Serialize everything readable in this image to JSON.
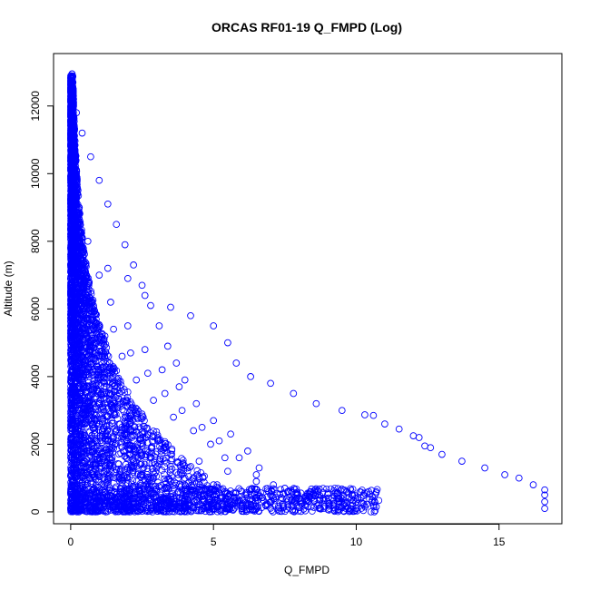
{
  "chart_data": {
    "type": "scatter",
    "title": "ORCAS RF01-19 Q_FMPD (Log)",
    "xlabel": "Q_FMPD",
    "ylabel": "Altitude (m)",
    "xlim": [
      -0.6,
      17.2
    ],
    "ylim": [
      -350,
      13550
    ],
    "x_ticks": [
      0,
      5,
      10,
      15
    ],
    "y_ticks": [
      0,
      2000,
      4000,
      6000,
      8000,
      10000,
      12000
    ],
    "marker": "open-circle",
    "color": "#0000ff",
    "grid": false,
    "legend": "none",
    "series": [
      {
        "points": [
          [
            0.05,
            12950
          ],
          [
            0.05,
            12800
          ],
          [
            0.05,
            12600
          ],
          [
            0.05,
            12400
          ],
          [
            0.1,
            12200
          ],
          [
            0.2,
            11800
          ],
          [
            0.4,
            11200
          ],
          [
            0.7,
            10500
          ],
          [
            1.0,
            9800
          ],
          [
            1.3,
            9100
          ],
          [
            1.6,
            8500
          ],
          [
            1.9,
            7900
          ],
          [
            2.2,
            7300
          ],
          [
            2.5,
            6700
          ],
          [
            2.8,
            6100
          ],
          [
            3.1,
            5500
          ],
          [
            3.4,
            4900
          ],
          [
            3.7,
            4400
          ],
          [
            4.0,
            3900
          ],
          [
            0.1,
            11000
          ],
          [
            0.3,
            9000
          ],
          [
            0.6,
            8000
          ],
          [
            1.0,
            7000
          ],
          [
            1.4,
            6200
          ],
          [
            2.0,
            5500
          ],
          [
            2.6,
            4800
          ],
          [
            3.2,
            4200
          ],
          [
            3.8,
            3700
          ],
          [
            4.4,
            3200
          ],
          [
            5.0,
            2700
          ],
          [
            5.6,
            2300
          ],
          [
            6.2,
            1800
          ],
          [
            6.6,
            1300
          ],
          [
            1.3,
            7200
          ],
          [
            2.0,
            6900
          ],
          [
            2.6,
            6400
          ],
          [
            3.5,
            6050
          ],
          [
            4.2,
            5800
          ],
          [
            5.0,
            5500
          ],
          [
            5.5,
            5000
          ],
          [
            5.8,
            4400
          ],
          [
            6.3,
            4000
          ],
          [
            7.0,
            3800
          ],
          [
            7.8,
            3500
          ],
          [
            8.6,
            3200
          ],
          [
            9.5,
            3000
          ],
          [
            10.3,
            2870
          ],
          [
            10.6,
            2850
          ],
          [
            11.0,
            2600
          ],
          [
            11.5,
            2450
          ],
          [
            12.0,
            2250
          ],
          [
            12.2,
            2200
          ],
          [
            12.4,
            1950
          ],
          [
            12.6,
            1900
          ],
          [
            13.0,
            1700
          ],
          [
            13.7,
            1500
          ],
          [
            14.5,
            1300
          ],
          [
            15.2,
            1100
          ],
          [
            15.7,
            1000
          ],
          [
            16.2,
            800
          ],
          [
            16.6,
            650
          ],
          [
            16.6,
            500
          ],
          [
            16.6,
            300
          ],
          [
            16.6,
            100
          ],
          [
            0.3,
            3500
          ],
          [
            0.6,
            3000
          ],
          [
            1.0,
            2600
          ],
          [
            1.5,
            2200
          ],
          [
            2.2,
            1700
          ],
          [
            3.0,
            1300
          ],
          [
            4.0,
            1000
          ],
          [
            5.0,
            800
          ],
          [
            6.0,
            600
          ],
          [
            7.0,
            500
          ],
          [
            8.0,
            400
          ],
          [
            9.0,
            300
          ],
          [
            10.0,
            200
          ],
          [
            10.7,
            150
          ],
          [
            0.9,
            1400
          ],
          [
            0.6,
            1100
          ],
          [
            0.5,
            800
          ],
          [
            0.9,
            600
          ],
          [
            1.4,
            450
          ],
          [
            2.2,
            300
          ],
          [
            3.0,
            150
          ],
          [
            4.0,
            100
          ],
          [
            5.0,
            80
          ],
          [
            6.0,
            90
          ],
          [
            7.0,
            110
          ],
          [
            8.0,
            130
          ],
          [
            0.5,
            300
          ],
          [
            0.9,
            250
          ],
          [
            1.5,
            200
          ],
          [
            2.5,
            400
          ],
          [
            3.5,
            900
          ],
          [
            4.5,
            1500
          ],
          [
            5.5,
            1200
          ],
          [
            6.5,
            900
          ],
          [
            7.5,
            700
          ],
          [
            8.5,
            500
          ],
          [
            9.5,
            400
          ],
          [
            1.2,
            5200
          ],
          [
            1.8,
            4600
          ],
          [
            2.3,
            3900
          ],
          [
            2.9,
            3300
          ],
          [
            3.6,
            2800
          ],
          [
            4.3,
            2400
          ],
          [
            4.9,
            2000
          ],
          [
            5.4,
            1600
          ],
          [
            0.8,
            6100
          ],
          [
            1.5,
            5400
          ],
          [
            2.1,
            4700
          ],
          [
            2.7,
            4100
          ],
          [
            3.3,
            3500
          ],
          [
            3.9,
            3000
          ],
          [
            4.6,
            2500
          ],
          [
            5.2,
            2100
          ],
          [
            5.9,
            1600
          ],
          [
            6.5,
            1100
          ],
          [
            7.1,
            800
          ],
          [
            7.6,
            600
          ],
          [
            8.2,
            450
          ]
        ]
      }
    ]
  }
}
